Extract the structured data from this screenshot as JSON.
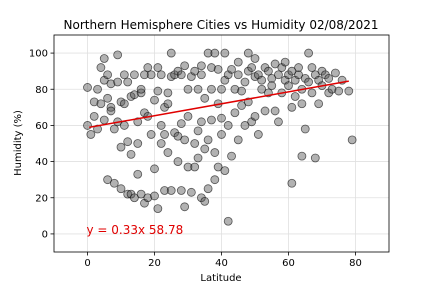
{
  "chart_data": {
    "type": "scatter",
    "title": "Northern Hemisphere Cities vs Humidity 02/08/2021",
    "x_label": "Latitude",
    "y_label": "Humidity (%)",
    "annotation": "y = 0.33x 58.78",
    "xlim": [
      -10,
      90
    ],
    "xticks": [
      0,
      20,
      40,
      60,
      80
    ],
    "ylim": [
      -10,
      110
    ],
    "yticks": [
      0,
      20,
      40,
      60,
      80,
      100
    ],
    "grid": true,
    "series": [
      {
        "color": "#555555",
        "x": [
          0,
          0,
          1,
          2,
          2,
          3,
          3,
          4,
          4,
          5,
          5,
          5,
          6,
          6,
          6,
          7,
          7,
          7,
          8,
          8,
          9,
          9,
          9,
          10,
          10,
          10,
          11,
          11,
          11,
          12,
          12,
          12,
          13,
          13,
          13,
          14,
          14,
          14,
          15,
          15,
          15,
          16,
          16,
          16,
          17,
          17,
          17,
          18,
          18,
          18,
          19,
          19,
          20,
          20,
          20,
          21,
          21,
          21,
          22,
          22,
          22,
          23,
          23,
          23,
          24,
          24,
          24,
          25,
          25,
          25,
          26,
          26,
          27,
          27,
          27,
          28,
          28,
          28,
          29,
          29,
          29,
          30,
          30,
          30,
          31,
          31,
          32,
          32,
          32,
          33,
          33,
          33,
          34,
          34,
          34,
          34,
          35,
          35,
          35,
          36,
          36,
          36,
          37,
          37,
          37,
          38,
          38,
          38,
          39,
          39,
          39,
          40,
          40,
          40,
          41,
          41,
          41,
          42,
          42,
          42,
          43,
          43,
          44,
          44,
          45,
          45,
          45,
          46,
          46,
          47,
          47,
          48,
          48,
          48,
          49,
          49,
          50,
          50,
          50,
          51,
          51,
          52,
          52,
          53,
          53,
          54,
          54,
          55,
          55,
          56,
          56,
          57,
          57,
          58,
          58,
          59,
          59,
          60,
          60,
          61,
          61,
          61,
          62,
          62,
          63,
          63,
          64,
          64,
          64,
          65,
          65,
          66,
          66,
          67,
          67,
          68,
          68,
          69,
          69,
          70,
          70,
          71,
          72,
          72,
          73,
          74,
          75,
          76,
          78,
          79
        ],
        "values": [
          81,
          60,
          55,
          73,
          65,
          58,
          80,
          72,
          92,
          97,
          85,
          63,
          88,
          75,
          30,
          70,
          83,
          68,
          28,
          58,
          84,
          99,
          62,
          25,
          73,
          48,
          88,
          60,
          72,
          22,
          84,
          51,
          22,
          44,
          76,
          20,
          88,
          77,
          33,
          62,
          50,
          22,
          78,
          80,
          17,
          88,
          67,
          92,
          65,
          20,
          55,
          88,
          74,
          36,
          21,
          92,
          14,
          79,
          88,
          50,
          60,
          70,
          24,
          55,
          72,
          78,
          45,
          100,
          24,
          87,
          56,
          88,
          40,
          90,
          54,
          24,
          88,
          61,
          15,
          93,
          52,
          80,
          37,
          65,
          87,
          23,
          37,
          50,
          90,
          80,
          42,
          57,
          20,
          93,
          88,
          62,
          18,
          75,
          47,
          100,
          52,
          25,
          92,
          63,
          80,
          100,
          45,
          30,
          91,
          37,
          72,
          80,
          64,
          55,
          100,
          85,
          35,
          7,
          88,
          60,
          91,
          43,
          80,
          67,
          95,
          88,
          52,
          79,
          71,
          84,
          60,
          100,
          90,
          73,
          92,
          62,
          87,
          97,
          65,
          88,
          55,
          85,
          80,
          92,
          68,
          90,
          78,
          86,
          82,
          94,
          68,
          88,
          62,
          92,
          78,
          85,
          95,
          88,
          82,
          90,
          28,
          70,
          85,
          76,
          88,
          92,
          43,
          72,
          80,
          58,
          86,
          100,
          84,
          78,
          92,
          42,
          88,
          72,
          85,
          82,
          90,
          88,
          78,
          86,
          80,
          89,
          79,
          85,
          79,
          52
        ]
      }
    ],
    "regression": {
      "color": "#e00000",
      "x": [
        0.5,
        78
      ],
      "values": [
        58.95,
        84.5
      ]
    }
  }
}
